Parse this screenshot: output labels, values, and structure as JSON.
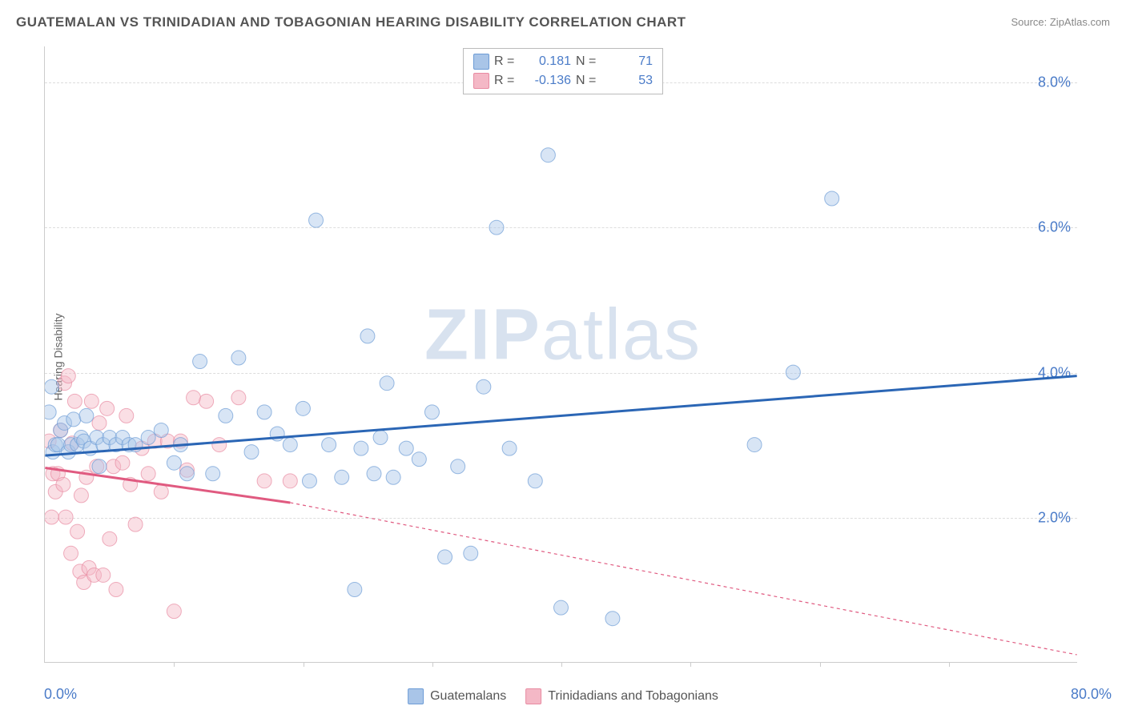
{
  "title": "GUATEMALAN VS TRINIDADIAN AND TOBAGONIAN HEARING DISABILITY CORRELATION CHART",
  "source_label": "Source: ZipAtlas.com",
  "ylabel": "Hearing Disability",
  "watermark_prefix": "ZIP",
  "watermark_suffix": "atlas",
  "chart": {
    "type": "scatter",
    "xlim": [
      0,
      80
    ],
    "ylim": [
      0,
      8.5
    ],
    "xtick_labels": [
      "0.0%",
      "80.0%"
    ],
    "ytick_values": [
      2.0,
      4.0,
      6.0,
      8.0
    ],
    "ytick_labels": [
      "2.0%",
      "4.0%",
      "6.0%",
      "8.0%"
    ],
    "xgrid_positions": [
      10,
      20,
      30,
      40,
      50,
      60,
      70
    ],
    "background_color": "#ffffff",
    "grid_color": "#dddddd",
    "axis_color": "#cccccc",
    "y_axis_label_color": "#4a7bc8",
    "point_radius": 9,
    "point_opacity": 0.45,
    "line_width": 3,
    "series": [
      {
        "name": "Guatemalans",
        "color_fill": "#a9c5e8",
        "color_stroke": "#6d9cd6",
        "line_color": "#2b66b5",
        "R": "0.181",
        "N": "71",
        "trend": {
          "x1": 0,
          "y1": 2.85,
          "x2": 80,
          "y2": 3.95,
          "dash": "none"
        },
        "points": [
          [
            0.3,
            3.45
          ],
          [
            0.5,
            3.8
          ],
          [
            0.6,
            2.9
          ],
          [
            0.8,
            3.0
          ],
          [
            1.0,
            3.0
          ],
          [
            1.2,
            3.2
          ],
          [
            1.5,
            3.3
          ],
          [
            1.8,
            2.9
          ],
          [
            2.0,
            3.0
          ],
          [
            2.2,
            3.35
          ],
          [
            2.5,
            3.0
          ],
          [
            2.8,
            3.1
          ],
          [
            3.0,
            3.05
          ],
          [
            3.2,
            3.4
          ],
          [
            3.5,
            2.95
          ],
          [
            4.0,
            3.1
          ],
          [
            4.2,
            2.7
          ],
          [
            4.5,
            3.0
          ],
          [
            5.0,
            3.1
          ],
          [
            5.5,
            3.0
          ],
          [
            6.0,
            3.1
          ],
          [
            6.5,
            3.0
          ],
          [
            7.0,
            3.0
          ],
          [
            8.0,
            3.1
          ],
          [
            9.0,
            3.2
          ],
          [
            10.0,
            2.75
          ],
          [
            10.5,
            3.0
          ],
          [
            11.0,
            2.6
          ],
          [
            12.0,
            4.15
          ],
          [
            13.0,
            2.6
          ],
          [
            14.0,
            3.4
          ],
          [
            15.0,
            4.2
          ],
          [
            16.0,
            2.9
          ],
          [
            17.0,
            3.45
          ],
          [
            18.0,
            3.15
          ],
          [
            19.0,
            3.0
          ],
          [
            20.0,
            3.5
          ],
          [
            20.5,
            2.5
          ],
          [
            21.0,
            6.1
          ],
          [
            22.0,
            3.0
          ],
          [
            23.0,
            2.55
          ],
          [
            24.0,
            1.0
          ],
          [
            24.5,
            2.95
          ],
          [
            25.0,
            4.5
          ],
          [
            25.5,
            2.6
          ],
          [
            26.0,
            3.1
          ],
          [
            26.5,
            3.85
          ],
          [
            27.0,
            2.55
          ],
          [
            28.0,
            2.95
          ],
          [
            29.0,
            2.8
          ],
          [
            30.0,
            3.45
          ],
          [
            31.0,
            1.45
          ],
          [
            32.0,
            2.7
          ],
          [
            33.0,
            1.5
          ],
          [
            34.0,
            3.8
          ],
          [
            35.0,
            6.0
          ],
          [
            36.0,
            2.95
          ],
          [
            38.0,
            2.5
          ],
          [
            39.0,
            7.0
          ],
          [
            40.0,
            0.75
          ],
          [
            44.0,
            0.6
          ],
          [
            55.0,
            3.0
          ],
          [
            58.0,
            4.0
          ],
          [
            61.0,
            6.4
          ]
        ]
      },
      {
        "name": "Trinidadians and Tobagonians",
        "color_fill": "#f4b8c6",
        "color_stroke": "#e88ba2",
        "line_color": "#e05a80",
        "R": "-0.136",
        "N": "53",
        "trend": {
          "x1": 0,
          "y1": 2.68,
          "x2": 19,
          "y2": 2.2,
          "dash": "none"
        },
        "trend_ext": {
          "x1": 19,
          "y1": 2.2,
          "x2": 80,
          "y2": 0.1,
          "dash": "4,4"
        },
        "points": [
          [
            0.3,
            3.05
          ],
          [
            0.5,
            2.0
          ],
          [
            0.6,
            2.6
          ],
          [
            0.8,
            2.35
          ],
          [
            1.0,
            2.6
          ],
          [
            1.2,
            3.2
          ],
          [
            1.4,
            2.45
          ],
          [
            1.5,
            3.85
          ],
          [
            1.6,
            2.0
          ],
          [
            1.8,
            3.95
          ],
          [
            2.0,
            1.5
          ],
          [
            2.1,
            3.02
          ],
          [
            2.3,
            3.6
          ],
          [
            2.5,
            1.8
          ],
          [
            2.7,
            1.25
          ],
          [
            2.8,
            2.3
          ],
          [
            3.0,
            1.1
          ],
          [
            3.2,
            2.55
          ],
          [
            3.4,
            1.3
          ],
          [
            3.6,
            3.6
          ],
          [
            3.8,
            1.2
          ],
          [
            4.0,
            2.7
          ],
          [
            4.2,
            3.3
          ],
          [
            4.5,
            1.2
          ],
          [
            4.8,
            3.5
          ],
          [
            5.0,
            1.7
          ],
          [
            5.3,
            2.7
          ],
          [
            5.5,
            1.0
          ],
          [
            6.0,
            2.75
          ],
          [
            6.3,
            3.4
          ],
          [
            6.6,
            2.45
          ],
          [
            7.0,
            1.9
          ],
          [
            7.5,
            2.95
          ],
          [
            8.0,
            2.6
          ],
          [
            8.5,
            3.05
          ],
          [
            9.0,
            2.35
          ],
          [
            9.5,
            3.05
          ],
          [
            10.0,
            0.7
          ],
          [
            10.5,
            3.05
          ],
          [
            11.0,
            2.65
          ],
          [
            11.5,
            3.65
          ],
          [
            12.5,
            3.6
          ],
          [
            13.5,
            3.0
          ],
          [
            15.0,
            3.65
          ],
          [
            17.0,
            2.5
          ],
          [
            19.0,
            2.5
          ]
        ]
      }
    ]
  },
  "top_legend_labels": {
    "R": "R =",
    "N": "N ="
  },
  "bottom_legend": [
    "Guatemalans",
    "Trinidadians and Tobagonians"
  ]
}
